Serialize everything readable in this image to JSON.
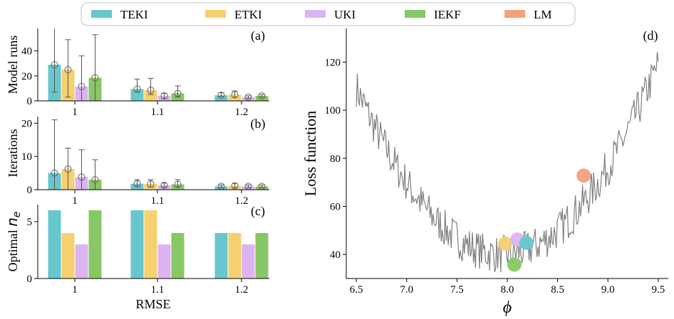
{
  "colors": {
    "TEKI": "#67c7cd",
    "ETKI": "#f6d06f",
    "UKI": "#dcb4f2",
    "IEKF": "#88c765",
    "LM": "#f4a07c",
    "loss_line": "#808080",
    "error_bar": "#555555"
  },
  "legend": {
    "entries": [
      {
        "key": "TEKI",
        "label": "TEKI"
      },
      {
        "key": "ETKI",
        "label": "ETKI"
      },
      {
        "key": "UKI",
        "label": "UKI"
      },
      {
        "key": "IEKF",
        "label": "IEKF"
      },
      {
        "key": "LM",
        "label": "LM"
      }
    ]
  },
  "chart_data": [
    {
      "id": "a",
      "panel_label": "(a)",
      "type": "bar",
      "ylabel": "Model runs",
      "xlabel": "",
      "categories": [
        "1",
        "1.1",
        "1.2"
      ],
      "ylim": [
        0,
        58
      ],
      "yticks": [
        0,
        20,
        40
      ],
      "error_bars": true,
      "series": [
        {
          "name": "TEKI",
          "values": [
            29,
            9.5,
            4.5
          ],
          "err_low": [
            7,
            7,
            3.5
          ],
          "err_high": [
            60,
            17.5,
            6.5
          ]
        },
        {
          "name": "ETKI",
          "values": [
            25,
            8.5,
            5
          ],
          "err_low": [
            3,
            5,
            3
          ],
          "err_high": [
            49,
            18,
            8
          ]
        },
        {
          "name": "UKI",
          "values": [
            11.5,
            4,
            3
          ],
          "err_low": [
            0,
            2,
            2
          ],
          "err_high": [
            36,
            6,
            4
          ]
        },
        {
          "name": "IEKF",
          "values": [
            18.5,
            6,
            4
          ],
          "err_low": [
            0,
            3,
            3
          ],
          "err_high": [
            53,
            12,
            5
          ]
        }
      ]
    },
    {
      "id": "b",
      "panel_label": "(b)",
      "type": "bar",
      "ylabel": "Iterations",
      "xlabel": "",
      "categories": [
        "1",
        "1.1",
        "1.2"
      ],
      "ylim": [
        0,
        22
      ],
      "yticks": [
        0,
        10,
        20
      ],
      "error_bars": true,
      "series": [
        {
          "name": "TEKI",
          "values": [
            5,
            1.8,
            1
          ],
          "err_low": [
            0,
            1,
            0.6
          ],
          "err_high": [
            21,
            3,
            1.4
          ]
        },
        {
          "name": "ETKI",
          "values": [
            6.2,
            1.7,
            1.2
          ],
          "err_low": [
            0,
            0.8,
            0.6
          ],
          "err_high": [
            12.5,
            3,
            1.8
          ]
        },
        {
          "name": "UKI",
          "values": [
            3.8,
            1.3,
            1
          ],
          "err_low": [
            0,
            0.8,
            0.6
          ],
          "err_high": [
            12,
            2,
            1.4
          ]
        },
        {
          "name": "IEKF",
          "values": [
            3,
            1.6,
            1
          ],
          "err_low": [
            0,
            0.8,
            0.6
          ],
          "err_high": [
            9,
            3,
            1.4
          ]
        }
      ]
    },
    {
      "id": "c",
      "panel_label": "(c)",
      "type": "bar",
      "ylabel": "Optimal n",
      "ylabel_sub": "e",
      "xlabel": "RMSE",
      "categories": [
        "1",
        "1.1",
        "1.2"
      ],
      "ylim": [
        0,
        6.5
      ],
      "yticks": [
        0,
        5
      ],
      "error_bars": false,
      "series": [
        {
          "name": "TEKI",
          "values": [
            6,
            6,
            4
          ]
        },
        {
          "name": "ETKI",
          "values": [
            4,
            6,
            4
          ]
        },
        {
          "name": "UKI",
          "values": [
            3,
            3,
            3
          ]
        },
        {
          "name": "IEKF",
          "values": [
            6,
            4,
            4
          ]
        }
      ]
    },
    {
      "id": "d",
      "panel_label": "(d)",
      "type": "line",
      "xlabel": "ϕ",
      "ylabel": "Loss function",
      "xlim": [
        6.4,
        9.6
      ],
      "ylim": [
        30,
        134
      ],
      "xticks": [
        6.5,
        7.0,
        7.5,
        8.0,
        8.5,
        9.0,
        9.5
      ],
      "xtick_labels": [
        "6.5",
        "7.0",
        "7.5",
        "8.0",
        "8.5",
        "9.0",
        "9.5"
      ],
      "yticks": [
        40,
        60,
        80,
        100,
        120
      ],
      "loss_curve": {
        "x_start": 6.5,
        "x_end": 9.5,
        "points": 300,
        "trend_center": 7.95,
        "trend_min": 40,
        "trend_scale": 33,
        "noise_amplitude": 8,
        "description": "noisy parabola of the loss function versus phi"
      },
      "markers": [
        {
          "name": "ETKI",
          "x": 7.98,
          "y": 44.5
        },
        {
          "name": "UKI",
          "x": 8.1,
          "y": 46.2
        },
        {
          "name": "TEKI",
          "x": 8.19,
          "y": 44.8
        },
        {
          "name": "IEKF",
          "x": 8.07,
          "y": 35.8
        },
        {
          "name": "LM",
          "x": 8.76,
          "y": 72.8
        }
      ]
    }
  ]
}
